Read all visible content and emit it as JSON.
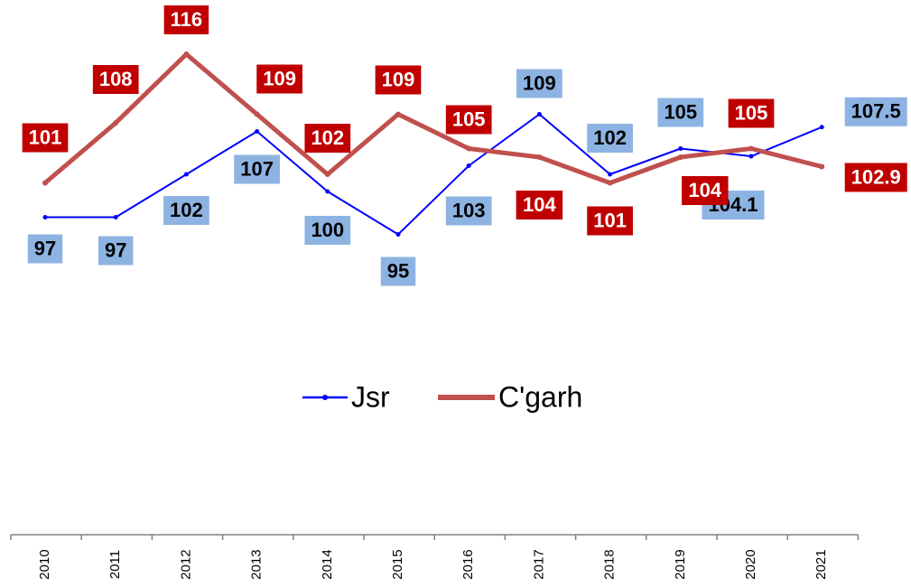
{
  "chart_data": {
    "type": "line",
    "categories": [
      "2010",
      "2011",
      "2012",
      "2013",
      "2014",
      "2015",
      "2016",
      "2017",
      "2018",
      "2019",
      "2020",
      "2021"
    ],
    "series": [
      {
        "name": "Jsr",
        "color": "#0000ff",
        "label_color": "#8db3e2",
        "label_text_color": "#000000",
        "values": [
          97,
          97,
          102,
          107,
          100,
          95,
          103,
          109,
          102,
          105,
          104.1,
          107.5
        ]
      },
      {
        "name": "C'garh",
        "color": "#c0504d",
        "label_color": "#c00000",
        "label_text_color": "#ffffff",
        "values": [
          101,
          108,
          116,
          109,
          102,
          109,
          105,
          104,
          101,
          104,
          105,
          102.9
        ]
      }
    ],
    "ylim": [
      60,
      122
    ],
    "legend": "middle"
  }
}
